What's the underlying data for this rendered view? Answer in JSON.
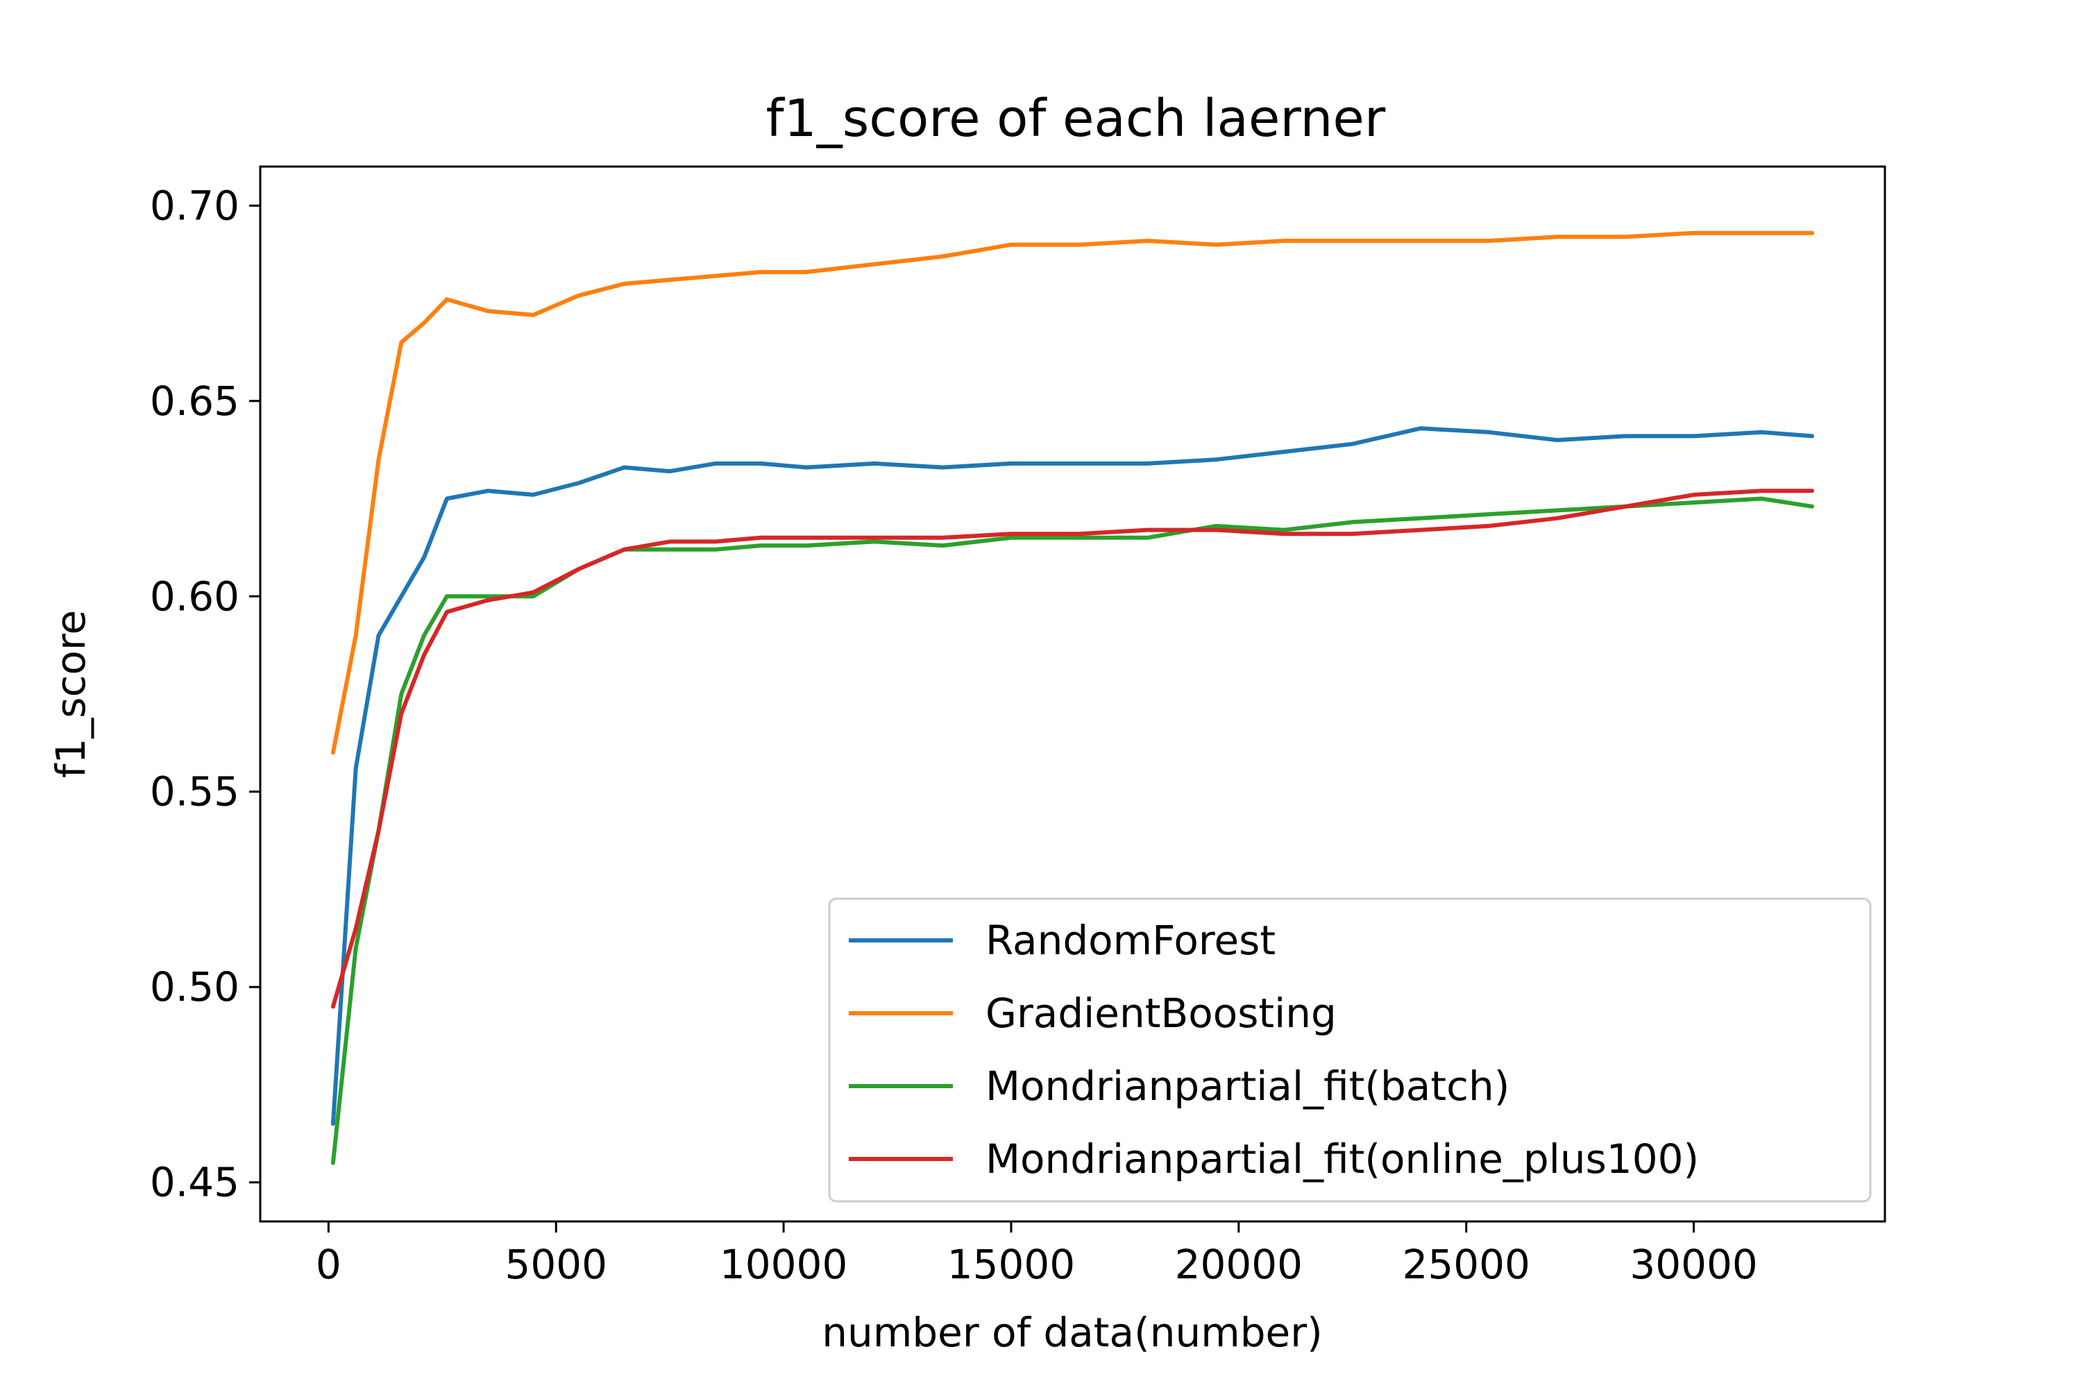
{
  "chart_data": {
    "type": "line",
    "title": "f1_score of each laerner",
    "xlabel": "number of data(number)",
    "ylabel": "f1_score",
    "xlim": [
      -1500,
      34200
    ],
    "ylim": [
      0.44,
      0.71
    ],
    "xticks": [
      0,
      5000,
      10000,
      15000,
      20000,
      25000,
      30000
    ],
    "yticks": [
      0.45,
      0.5,
      0.55,
      0.6,
      0.65,
      0.7
    ],
    "xtick_labels": [
      "0",
      "5000",
      "10000",
      "15000",
      "20000",
      "25000",
      "30000"
    ],
    "ytick_labels": [
      "0.45",
      "0.50",
      "0.55",
      "0.60",
      "0.65",
      "0.70"
    ],
    "legend_position": "lower-right",
    "x": [
      100,
      600,
      1100,
      1600,
      2100,
      2600,
      3500,
      4500,
      5500,
      6500,
      7500,
      8500,
      9500,
      10500,
      12000,
      13500,
      15000,
      16500,
      18000,
      19500,
      21000,
      22500,
      24000,
      25500,
      27000,
      28500,
      30000,
      31500,
      32600
    ],
    "series": [
      {
        "name": "RandomForest",
        "color": "#1f77b4",
        "values": [
          0.465,
          0.556,
          0.59,
          0.6,
          0.61,
          0.625,
          0.627,
          0.626,
          0.629,
          0.633,
          0.632,
          0.634,
          0.634,
          0.633,
          0.634,
          0.633,
          0.634,
          0.634,
          0.634,
          0.635,
          0.637,
          0.639,
          0.643,
          0.642,
          0.64,
          0.641,
          0.641,
          0.642,
          0.641
        ]
      },
      {
        "name": "GradientBoosting",
        "color": "#ff7f0e",
        "values": [
          0.56,
          0.59,
          0.635,
          0.665,
          0.67,
          0.676,
          0.673,
          0.672,
          0.677,
          0.68,
          0.681,
          0.682,
          0.683,
          0.683,
          0.685,
          0.687,
          0.69,
          0.69,
          0.691,
          0.69,
          0.691,
          0.691,
          0.691,
          0.691,
          0.692,
          0.692,
          0.693,
          0.693,
          0.693
        ]
      },
      {
        "name": "Mondrianpartial_fit(batch)",
        "color": "#2ca02c",
        "values": [
          0.455,
          0.51,
          0.54,
          0.575,
          0.59,
          0.6,
          0.6,
          0.6,
          0.607,
          0.612,
          0.612,
          0.612,
          0.613,
          0.613,
          0.614,
          0.613,
          0.615,
          0.615,
          0.615,
          0.618,
          0.617,
          0.619,
          0.62,
          0.621,
          0.622,
          0.623,
          0.624,
          0.625,
          0.623
        ]
      },
      {
        "name": "Mondrianpartial_fit(online_plus100)",
        "color": "#d62728",
        "values": [
          0.495,
          0.515,
          0.54,
          0.57,
          0.585,
          0.596,
          0.599,
          0.601,
          0.607,
          0.612,
          0.614,
          0.614,
          0.615,
          0.615,
          0.615,
          0.615,
          0.616,
          0.616,
          0.617,
          0.617,
          0.616,
          0.616,
          0.617,
          0.618,
          0.62,
          0.623,
          0.626,
          0.627,
          0.627
        ]
      }
    ]
  }
}
